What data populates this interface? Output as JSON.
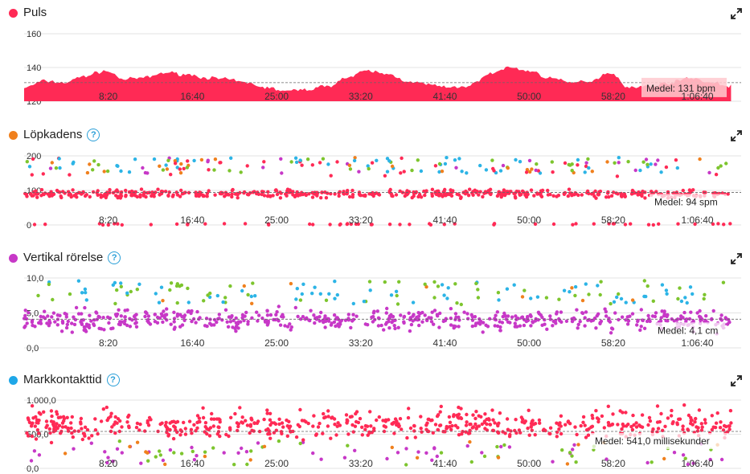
{
  "chart_data": [
    {
      "type": "area",
      "title": "Puls",
      "color": "#ff2a55",
      "ylim": [
        120,
        160
      ],
      "y_ticks": [
        "160",
        "140",
        "120"
      ],
      "x_ticks": [
        "8:20",
        "16:40",
        "25:00",
        "33:20",
        "41:40",
        "50:00",
        "58:20",
        "1:06:40"
      ],
      "x_range_min": [
        0,
        71
      ],
      "mean": 131,
      "mean_label": "Medel: 131 bpm",
      "x_min": [
        0,
        2,
        4,
        6,
        8,
        10,
        12,
        14,
        16,
        18,
        20,
        22,
        24,
        26,
        28,
        30,
        32,
        34,
        36,
        38,
        40,
        42,
        44,
        46,
        48,
        50,
        52,
        54,
        56,
        58,
        60,
        62,
        64,
        66,
        68,
        70
      ],
      "values": [
        128,
        132,
        131,
        135,
        138,
        133,
        134,
        137,
        136,
        134,
        133,
        131,
        128,
        126,
        127,
        129,
        134,
        138,
        136,
        132,
        130,
        128,
        129,
        136,
        140,
        138,
        134,
        131,
        132,
        137,
        128,
        129,
        131,
        134,
        131,
        129
      ]
    },
    {
      "type": "scatter",
      "title": "Löpkadens",
      "has_help": true,
      "ylim": [
        0,
        200
      ],
      "y_ticks": [
        "200",
        "100",
        "0"
      ],
      "x_ticks": [
        "8:20",
        "16:40",
        "25:00",
        "33:20",
        "41:40",
        "50:00",
        "58:20",
        "1:06:40"
      ],
      "x_range_min": [
        0,
        71
      ],
      "mean": 94,
      "mean_label": "Medel: 94 spm",
      "main_band": [
        75,
        105
      ],
      "series": [
        {
          "color": "#ff2a55",
          "share": 0.82
        },
        {
          "color": "#2cb4e6",
          "share": 0.07
        },
        {
          "color": "#7dc52e",
          "share": 0.05
        },
        {
          "color": "#c738c7",
          "share": 0.03
        },
        {
          "color": "#f0801d",
          "share": 0.03
        }
      ]
    },
    {
      "type": "scatter",
      "title": "Vertikal rörelse",
      "has_help": true,
      "ylim": [
        0,
        10
      ],
      "y_ticks": [
        "10,0",
        "5,0",
        "0,0"
      ],
      "x_ticks": [
        "8:20",
        "16:40",
        "25:00",
        "33:20",
        "41:40",
        "50:00",
        "58:20",
        "1:06:40"
      ],
      "x_range_min": [
        0,
        71
      ],
      "mean": 4.1,
      "mean_label": "Medel: 4,1 cm",
      "main_band": [
        2.0,
        6.0
      ],
      "series": [
        {
          "color": "#c738c7",
          "share": 0.78
        },
        {
          "color": "#2cb4e6",
          "share": 0.12
        },
        {
          "color": "#7dc52e",
          "share": 0.09
        },
        {
          "color": "#f0801d",
          "share": 0.01
        }
      ]
    },
    {
      "type": "scatter",
      "title": "Markkontakttid",
      "has_help": true,
      "ylim": [
        0,
        1000
      ],
      "y_ticks": [
        "1.000,0",
        "500,0",
        "0,0"
      ],
      "x_ticks": [
        "8:20",
        "16:40",
        "25:00",
        "33:20",
        "41:40",
        "50:00",
        "58:20",
        "1:06:40"
      ],
      "x_range_min": [
        0,
        71
      ],
      "mean": 541,
      "mean_label": "Medel: 541,0 millisekunder",
      "main_band": [
        380,
        880
      ],
      "series": [
        {
          "color": "#ff2a55",
          "share": 0.86
        },
        {
          "color": "#c738c7",
          "share": 0.07
        },
        {
          "color": "#7dc52e",
          "share": 0.04
        },
        {
          "color": "#f0801d",
          "share": 0.03
        }
      ]
    }
  ],
  "colors": {
    "puls": "#ff2a55",
    "lopkadens": "#f0801d",
    "vertikal": "#c738c7",
    "markkontakt": "#1ea7e8",
    "help": "#2a9fd8"
  },
  "icons": {
    "help": "?",
    "expand": "expand-icon"
  }
}
